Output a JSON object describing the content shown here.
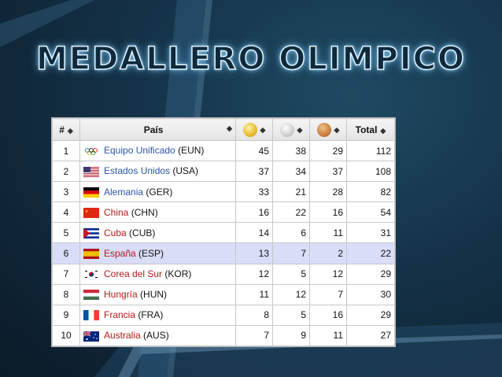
{
  "title": "MEDALLERO OLIMPICO",
  "table": {
    "headers": {
      "rank": "#",
      "country": "País",
      "total": "Total",
      "sort_icon": "◆"
    },
    "medal_colors": {
      "gold": "#e8b92e",
      "silver": "#cfcfcf",
      "bronze": "#c8803e"
    },
    "rows": [
      {
        "rank": "1",
        "name": "Equipo Unificado",
        "code": "(EUN)",
        "gold": "45",
        "silver": "38",
        "bronze": "29",
        "total": "112",
        "flag": "olympic-rings"
      },
      {
        "rank": "2",
        "name": "Estados Unidos",
        "code": "(USA)",
        "gold": "37",
        "silver": "34",
        "bronze": "37",
        "total": "108",
        "flag": "usa"
      },
      {
        "rank": "3",
        "name": "Alemania",
        "code": "(GER)",
        "gold": "33",
        "silver": "21",
        "bronze": "28",
        "total": "82",
        "flag": "germany"
      },
      {
        "rank": "4",
        "name": "China",
        "code": "(CHN)",
        "gold": "16",
        "silver": "22",
        "bronze": "16",
        "total": "54",
        "flag": "china"
      },
      {
        "rank": "5",
        "name": "Cuba",
        "code": "(CUB)",
        "gold": "14",
        "silver": "6",
        "bronze": "11",
        "total": "31",
        "flag": "cuba"
      },
      {
        "rank": "6",
        "name": "España",
        "code": "(ESP)",
        "gold": "13",
        "silver": "7",
        "bronze": "2",
        "total": "22",
        "flag": "spain"
      },
      {
        "rank": "7",
        "name": "Corea del Sur",
        "code": "(KOR)",
        "gold": "12",
        "silver": "5",
        "bronze": "12",
        "total": "29",
        "flag": "south-korea"
      },
      {
        "rank": "8",
        "name": "Hungría",
        "code": "(HUN)",
        "gold": "11",
        "silver": "12",
        "bronze": "7",
        "total": "30",
        "flag": "hungary"
      },
      {
        "rank": "9",
        "name": "Francia",
        "code": "(FRA)",
        "gold": "8",
        "silver": "5",
        "bronze": "16",
        "total": "29",
        "flag": "france"
      },
      {
        "rank": "10",
        "name": "Australia",
        "code": "(AUS)",
        "gold": "7",
        "silver": "9",
        "bronze": "11",
        "total": "27",
        "flag": "australia"
      }
    ]
  }
}
